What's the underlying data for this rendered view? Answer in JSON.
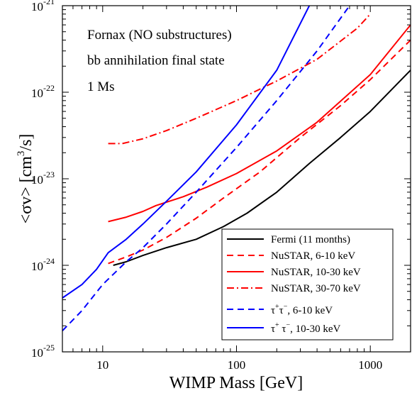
{
  "chart_data": {
    "type": "line",
    "xlabel": "WIMP Mass [GeV]",
    "ylabel_main": "<σv> [cm",
    "ylabel_sup": "3",
    "ylabel_end": "/s]",
    "xscale": "log",
    "yscale": "log",
    "xlim": [
      5,
      2000
    ],
    "ylim": [
      1e-25,
      1e-21
    ],
    "grid": false,
    "legend_position": "bottom-right",
    "x_ticks": [
      {
        "value": 10,
        "label": "10"
      },
      {
        "value": 100,
        "label": "100"
      },
      {
        "value": 1000,
        "label": "1000"
      }
    ],
    "y_ticks": [
      {
        "value": 1e-25,
        "base": "10",
        "exp": "-25"
      },
      {
        "value": 1e-24,
        "base": "10",
        "exp": "-24"
      },
      {
        "value": 1e-23,
        "base": "10",
        "exp": "-23"
      },
      {
        "value": 1e-22,
        "base": "10",
        "exp": "-22"
      },
      {
        "value": 1e-21,
        "base": "10",
        "exp": "-21"
      }
    ],
    "annotations": [
      "Fornax (NO substructures)",
      "bb annihilation final state",
      "1 Ms"
    ],
    "series": [
      {
        "name": "Fermi (11 months)",
        "color": "#000000",
        "dash": "solid",
        "x": [
          12,
          15,
          20,
          30,
          50,
          80,
          120,
          200,
          350,
          600,
          1000,
          2000
        ],
        "y": [
          1e-24,
          1.1e-24,
          1.3e-24,
          1.6e-24,
          2e-24,
          2.8e-24,
          4e-24,
          7e-24,
          1.5e-23,
          3e-23,
          6e-23,
          1.8e-22
        ]
      },
      {
        "name": "NuSTAR, 6-10 keV",
        "color": "#ff0000",
        "dash": "dashed",
        "x": [
          11,
          15,
          20,
          30,
          50,
          80,
          150,
          300,
          600,
          1000,
          2000
        ],
        "y": [
          1.05e-24,
          1.25e-24,
          1.5e-24,
          2.1e-24,
          3.5e-24,
          6e-24,
          1.2e-23,
          3e-23,
          7e-23,
          1.4e-22,
          4e-22
        ]
      },
      {
        "name": "NuSTAR, 10-30 keV",
        "color": "#ff0000",
        "dash": "solid",
        "x": [
          11,
          15,
          20,
          25,
          40,
          60,
          100,
          200,
          400,
          1000,
          2000
        ],
        "y": [
          3.2e-24,
          3.6e-24,
          4.2e-24,
          4.9e-24,
          6.2e-24,
          8e-24,
          1.15e-23,
          2.1e-23,
          4.5e-23,
          1.6e-22,
          6e-22
        ]
      },
      {
        "name": "NuSTAR, 30-70 keV",
        "color": "#ff0000",
        "dash": "dashdot",
        "x": [
          11,
          14,
          20,
          30,
          50,
          100,
          200,
          400,
          800,
          1000
        ],
        "y": [
          2.55e-23,
          2.55e-23,
          2.9e-23,
          3.6e-23,
          5e-23,
          8e-23,
          1.35e-22,
          2.4e-22,
          5.5e-22,
          8e-22
        ]
      },
      {
        "name": "τ+τ−, 6-10 keV",
        "color": "#0000ff",
        "dash": "dashed",
        "x": [
          5,
          7,
          10,
          15,
          20,
          30,
          50,
          100,
          200,
          400,
          700
        ],
        "y": [
          1.75e-25,
          3e-25,
          6e-25,
          1.1e-24,
          1.6e-24,
          3e-24,
          7e-24,
          2.3e-23,
          8e-23,
          3e-22,
          1e-21
        ]
      },
      {
        "name": "τ+τ−, 10-30 keV",
        "color": "#0000ff",
        "dash": "solid",
        "x": [
          5,
          7,
          9,
          11,
          15,
          20,
          30,
          50,
          100,
          200,
          350
        ],
        "y": [
          4.2e-25,
          6e-25,
          9e-25,
          1.4e-24,
          2e-24,
          3e-24,
          5.5e-24,
          1.2e-23,
          4.2e-23,
          1.8e-22,
          1e-21
        ]
      }
    ],
    "legend_labels": [
      {
        "text": "Fermi (11 months)"
      },
      {
        "text": "NuSTAR, 6-10 keV"
      },
      {
        "text": "NuSTAR, 10-30 keV"
      },
      {
        "text": "NuSTAR, 30-70 keV"
      },
      {
        "tau": "τ",
        "sup1": "+",
        "tau2": "τ",
        "sup2": "−",
        "rest": ", 6-10 keV"
      },
      {
        "tau": "τ",
        "sup1": "+",
        "tau2": " τ",
        "sup2": "−",
        "rest": ", 10-30 keV"
      }
    ]
  }
}
